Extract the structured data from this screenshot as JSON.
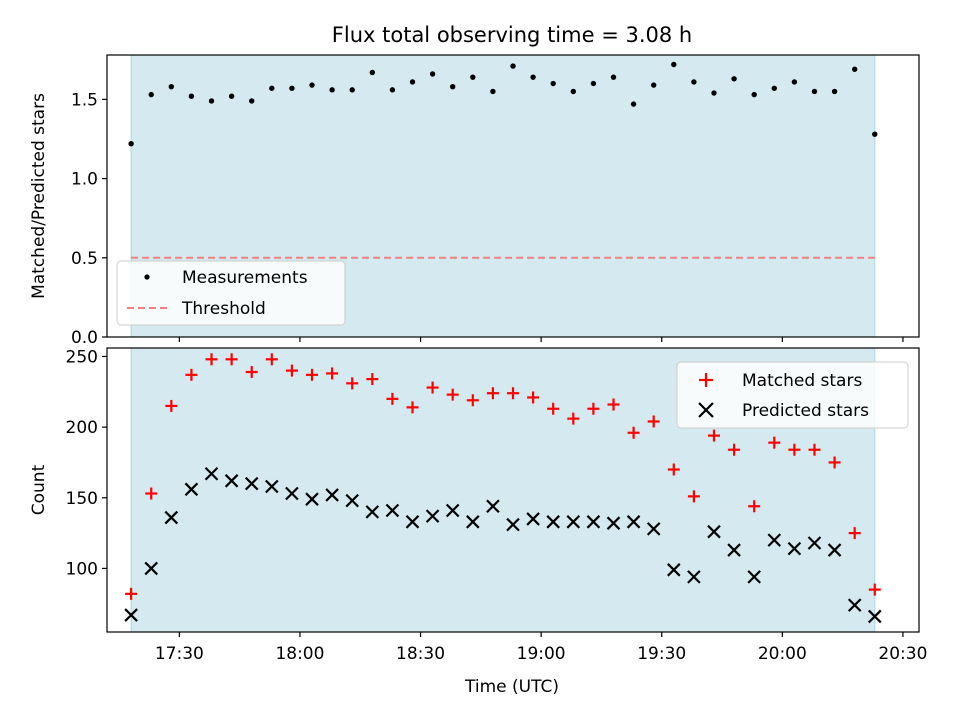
{
  "title": "Flux total observing time = 3.08 h",
  "colors": {
    "shade": "#d4eaf0",
    "shade_edge": "#a9d6e3",
    "measurement": "#000000",
    "threshold": "#f08080",
    "matched": "#ff0000",
    "predicted": "#000000"
  },
  "chart_data": [
    {
      "type": "scatter",
      "ylabel": "Matched/Predicted stars",
      "ylim": [
        0,
        1.78
      ],
      "yticks": [
        0.0,
        0.5,
        1.0,
        1.5
      ],
      "ytick_labels": [
        "0.0",
        "0.5",
        "1.0",
        "1.5"
      ],
      "xlim": [
        "17:12",
        "20:34"
      ],
      "shaded_span": [
        "17:18",
        "20:23"
      ],
      "threshold": 0.5,
      "legend": {
        "placement": "lower-left",
        "entries": [
          "Measurements",
          "Threshold"
        ]
      },
      "series": [
        {
          "name": "Measurements",
          "marker": "dot",
          "x": [
            "17:18",
            "17:23",
            "17:28",
            "17:33",
            "17:38",
            "17:43",
            "17:48",
            "17:53",
            "17:58",
            "18:03",
            "18:08",
            "18:13",
            "18:18",
            "18:23",
            "18:28",
            "18:33",
            "18:38",
            "18:43",
            "18:48",
            "18:53",
            "18:58",
            "19:03",
            "19:08",
            "19:13",
            "19:18",
            "19:23",
            "19:28",
            "19:33",
            "19:38",
            "19:43",
            "19:48",
            "19:53",
            "19:58",
            "20:03",
            "20:08",
            "20:13",
            "20:18",
            "20:23"
          ],
          "y": [
            1.22,
            1.53,
            1.58,
            1.52,
            1.49,
            1.52,
            1.49,
            1.57,
            1.57,
            1.59,
            1.56,
            1.56,
            1.67,
            1.56,
            1.61,
            1.66,
            1.58,
            1.64,
            1.55,
            1.71,
            1.64,
            1.6,
            1.55,
            1.6,
            1.64,
            1.47,
            1.59,
            1.72,
            1.61,
            1.54,
            1.63,
            1.53,
            1.57,
            1.61,
            1.55,
            1.55,
            1.69,
            1.28
          ]
        }
      ]
    },
    {
      "type": "scatter",
      "xlabel": "Time (UTC)",
      "ylabel": "Count",
      "ylim": [
        55,
        256
      ],
      "yticks": [
        100,
        150,
        200,
        250
      ],
      "ytick_labels": [
        "100",
        "150",
        "200",
        "250"
      ],
      "xlim": [
        "17:12",
        "20:34"
      ],
      "xticks": [
        "17:30",
        "18:00",
        "18:30",
        "19:00",
        "19:30",
        "20:00",
        "20:30"
      ],
      "shaded_span": [
        "17:18",
        "20:23"
      ],
      "legend": {
        "placement": "top-right",
        "entries": [
          "Matched stars",
          "Predicted stars"
        ]
      },
      "x": [
        "17:18",
        "17:23",
        "17:28",
        "17:33",
        "17:38",
        "17:43",
        "17:48",
        "17:53",
        "17:58",
        "18:03",
        "18:08",
        "18:13",
        "18:18",
        "18:23",
        "18:28",
        "18:33",
        "18:38",
        "18:43",
        "18:48",
        "18:53",
        "18:58",
        "19:03",
        "19:08",
        "19:13",
        "19:18",
        "19:23",
        "19:28",
        "19:33",
        "19:38",
        "19:43",
        "19:48",
        "19:53",
        "19:58",
        "20:03",
        "20:08",
        "20:13",
        "20:18",
        "20:23"
      ],
      "series": [
        {
          "name": "Matched stars",
          "marker": "plus",
          "y": [
            82,
            153,
            215,
            237,
            248,
            248,
            239,
            248,
            240,
            237,
            238,
            231,
            234,
            220,
            214,
            228,
            223,
            219,
            224,
            224,
            221,
            213,
            206,
            213,
            216,
            196,
            204,
            170,
            151,
            194,
            184,
            144,
            189,
            184,
            184,
            175,
            125,
            85
          ]
        },
        {
          "name": "Predicted stars",
          "marker": "x",
          "y": [
            67,
            100,
            136,
            156,
            167,
            162,
            160,
            158,
            153,
            149,
            152,
            148,
            140,
            141,
            133,
            137,
            141,
            133,
            144,
            131,
            135,
            133,
            133,
            133,
            132,
            133,
            128,
            99,
            94,
            126,
            113,
            94,
            120,
            114,
            118,
            113,
            74,
            66
          ]
        }
      ]
    }
  ]
}
